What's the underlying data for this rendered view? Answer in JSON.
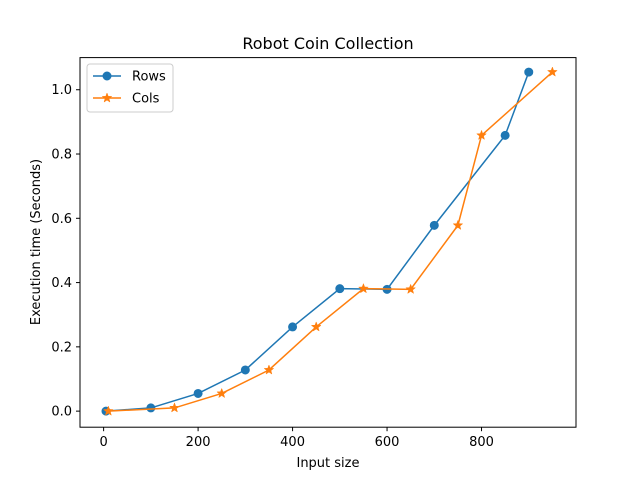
{
  "chart_data": {
    "type": "line",
    "title": "Robot Coin Collection",
    "xlabel": "Input size",
    "ylabel": "Execution time (Seconds)",
    "xlim": [
      -50,
      1000
    ],
    "ylim": [
      -0.05,
      1.1
    ],
    "xticks": [
      0,
      200,
      400,
      600,
      800
    ],
    "yticks": [
      0.0,
      0.2,
      0.4,
      0.6,
      0.8,
      1.0
    ],
    "xtick_labels": [
      "0",
      "200",
      "400",
      "600",
      "800"
    ],
    "ytick_labels": [
      "0.0",
      "0.2",
      "0.4",
      "0.6",
      "0.8",
      "1.0"
    ],
    "grid": false,
    "legend_position": "top-left",
    "series": [
      {
        "name": "Rows",
        "color": "#1f77b4",
        "marker": "circle",
        "x": [
          5,
          100,
          200,
          300,
          400,
          500,
          600,
          700,
          850,
          900
        ],
        "y": [
          0.0,
          0.01,
          0.055,
          0.128,
          0.262,
          0.381,
          0.379,
          0.578,
          0.858,
          1.055
        ]
      },
      {
        "name": "Cols",
        "color": "#ff7f0e",
        "marker": "star",
        "x": [
          10,
          150,
          250,
          350,
          450,
          550,
          650,
          750,
          800,
          950
        ],
        "y": [
          0.0,
          0.01,
          0.055,
          0.128,
          0.262,
          0.381,
          0.379,
          0.578,
          0.858,
          1.055
        ]
      }
    ]
  }
}
